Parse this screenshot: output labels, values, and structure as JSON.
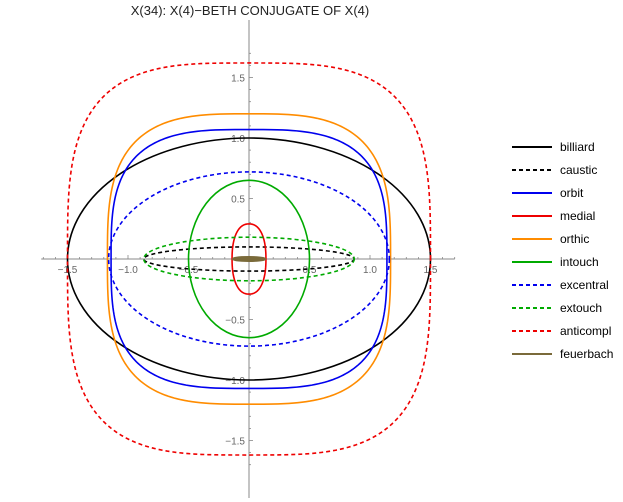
{
  "chart_data": {
    "type": "line",
    "title": "X(34): X(4)−BETH CONJUGATE OF X(4)",
    "xlabel": "",
    "ylabel": "",
    "xlim": [
      -1.75,
      1.75
    ],
    "ylim": [
      -1.75,
      1.75
    ],
    "x_ticks": [
      {
        "value": -1.5,
        "label": "−1.5"
      },
      {
        "value": -1.0,
        "label": "−1.0"
      },
      {
        "value": -0.5,
        "label": "−0.5"
      },
      {
        "value": 0.5,
        "label": "0.5"
      },
      {
        "value": 1.0,
        "label": "1.0"
      },
      {
        "value": 1.5,
        "label": "1.5"
      }
    ],
    "y_ticks": [
      {
        "value": 1.5,
        "label": "1.5"
      },
      {
        "value": 1.0,
        "label": "1.0"
      },
      {
        "value": 0.5,
        "label": "0.5"
      },
      {
        "value": -0.5,
        "label": "−0.5"
      },
      {
        "value": -1.0,
        "label": "−1.0"
      },
      {
        "value": -1.5,
        "label": "−1.5"
      }
    ],
    "grid": false,
    "legend_position": "right",
    "series": [
      {
        "name": "billiard",
        "color": "#000000",
        "dash": "solid",
        "shape": "ellipse",
        "center": [
          0,
          0
        ],
        "rx": 1.5,
        "ry": 1.0
      },
      {
        "name": "caustic",
        "color": "#000000",
        "dash": "dashed",
        "shape": "ellipse",
        "center": [
          0,
          0
        ],
        "rx": 0.87,
        "ry": 0.1
      },
      {
        "name": "orbit",
        "color": "#0000ee",
        "dash": "solid",
        "shape": "superellipse",
        "center": [
          0,
          0
        ],
        "rx": 1.14,
        "ry": 1.07,
        "exponent": 3.2
      },
      {
        "name": "medial",
        "color": "#ee0000",
        "dash": "solid",
        "shape": "superellipse",
        "center": [
          0,
          0
        ],
        "rx": 0.14,
        "ry": 0.29,
        "exponent": 2.3
      },
      {
        "name": "orthic",
        "color": "#ff8c00",
        "dash": "solid",
        "shape": "superellipse",
        "center": [
          0,
          0
        ],
        "rx": 1.17,
        "ry": 1.2,
        "exponent": 3.2
      },
      {
        "name": "intouch",
        "color": "#00aa00",
        "dash": "solid",
        "shape": "ellipse",
        "center": [
          0,
          0
        ],
        "rx": 0.5,
        "ry": 0.65
      },
      {
        "name": "excentral",
        "color": "#0000ee",
        "dash": "dashed",
        "shape": "ellipse",
        "center": [
          0,
          0
        ],
        "rx": 1.16,
        "ry": 0.72
      },
      {
        "name": "extouch",
        "color": "#00aa00",
        "dash": "dashed",
        "shape": "ellipse",
        "center": [
          0,
          0
        ],
        "rx": 0.87,
        "ry": 0.18
      },
      {
        "name": "anticompl",
        "color": "#ee0000",
        "dash": "dashed",
        "shape": "superellipse",
        "center": [
          0,
          0
        ],
        "rx": 1.5,
        "ry": 1.62,
        "exponent": 3.4
      },
      {
        "name": "feuerbach",
        "color": "#7a6a3a",
        "dash": "solid",
        "shape": "ellipse",
        "center": [
          0,
          0
        ],
        "rx": 0.13,
        "ry": 0.012
      }
    ]
  }
}
